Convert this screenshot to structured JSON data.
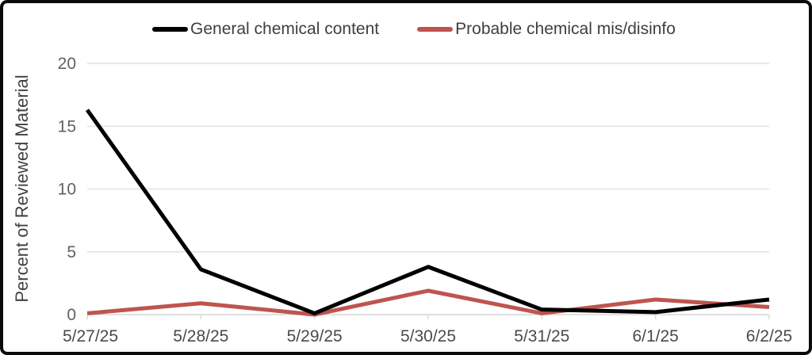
{
  "chart_data": {
    "type": "line",
    "title": "",
    "xlabel": "",
    "ylabel": "Percent of Reviewed Material",
    "categories": [
      "5/27/25",
      "5/28/25",
      "5/29/25",
      "5/30/25",
      "5/31/25",
      "6/1/25",
      "6/2/25"
    ],
    "series": [
      {
        "name": "General chemical content",
        "color": "#000000",
        "values": [
          16.3,
          3.6,
          0.1,
          3.8,
          0.4,
          0.2,
          1.2
        ]
      },
      {
        "name": "Probable chemical mis/disinfo",
        "color": "#bf544f",
        "values": [
          0.1,
          0.9,
          0.0,
          1.9,
          0.1,
          1.2,
          0.6
        ]
      }
    ],
    "ylim": [
      0,
      20
    ],
    "yticks": [
      0,
      5,
      10,
      15,
      20
    ],
    "grid": "horizontal",
    "legend_position": "top"
  },
  "legend": {
    "item1": "General chemical content",
    "item2": "Probable chemical mis/disinfo"
  },
  "colors": {
    "series1": "#000000",
    "series2": "#bf544f",
    "gridline": "#e2e2e2",
    "frame_border": "#0a0a0a"
  }
}
